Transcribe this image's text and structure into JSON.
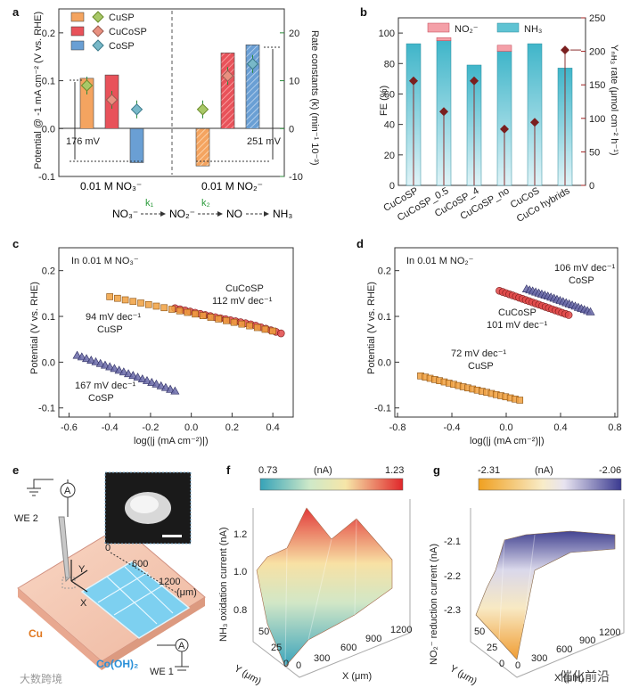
{
  "panels": {
    "a": {
      "label": "a",
      "ylabel_left": "Potential @ -1 mA cm⁻² (V vs. RHE)",
      "ylabel_right": "Rate constants (k) (min⁻¹ 10⁻³)",
      "left_ticks": [
        "0.2",
        "0.1",
        "0.0",
        "-0.1"
      ],
      "right_ticks": [
        "20",
        "10",
        "0",
        "-10"
      ],
      "legend": [
        "CuSP",
        "CuCoSP",
        "CoSP"
      ],
      "group_labels": [
        "0.01 M NO₃⁻",
        "0.01 M NO₂⁻"
      ],
      "annot_left": "176 mV",
      "annot_right": "251 mV",
      "scheme": {
        "s1": "NO₃⁻",
        "s2": "NO₂⁻",
        "s3": "NO",
        "s4": "NH₃",
        "k1": "k₁",
        "k2": "k₂"
      }
    },
    "b": {
      "label": "b",
      "ylabel_left": "FE (%)",
      "ylabel_right": "Yₙʜ₃ rate (μmol cm⁻² h⁻¹)",
      "left_ticks": [
        "100",
        "80",
        "60",
        "40",
        "20",
        "0"
      ],
      "right_ticks": [
        "250",
        "200",
        "150",
        "100",
        "50",
        "0"
      ],
      "legend": [
        "NO₂⁻",
        "NH₃"
      ],
      "categories": [
        "CuCoSP",
        "CuCoSP_0.5",
        "CuCoSP_4",
        "CuCoSP_no",
        "CuCoS",
        "CuCo hybrids"
      ]
    },
    "c": {
      "label": "c",
      "title": "In 0.01 M NO₃⁻",
      "ylabel": "Potential (V vs. RHE)",
      "xlabel": "log(|j (mA cm⁻²)|)",
      "x_ticks": [
        "-0.6",
        "-0.4",
        "-0.2",
        "0.0",
        "0.2",
        "0.4"
      ],
      "y_ticks": [
        "0.2",
        "0.1",
        "0.0",
        "-0.1"
      ],
      "annotations": {
        "cucosp_name": "CuCoSP",
        "cucosp_slope": "112 mV dec⁻¹",
        "cusp_slope": "94 mV dec⁻¹",
        "cusp_name": "CuSP",
        "cosp_slope": "167 mV dec⁻¹",
        "cosp_name": "CoSP"
      }
    },
    "d": {
      "label": "d",
      "title": "In 0.01 M NO₂⁻",
      "ylabel": "Potential (V vs. RHE)",
      "xlabel": "log(|j (mA cm⁻²)|)",
      "x_ticks": [
        "-0.8",
        "-0.4",
        "0.0",
        "0.4",
        "0.8"
      ],
      "y_ticks": [
        "0.2",
        "0.1",
        "0.0",
        "-0.1"
      ],
      "annotations": {
        "cosp_slope": "106 mV dec⁻¹",
        "cosp_name": "CoSP",
        "cucosp_name": "CuCoSP",
        "cucosp_slope": "101 mV dec⁻¹",
        "cusp_slope": "72 mV dec⁻¹",
        "cusp_name": "CuSP"
      }
    },
    "e": {
      "label": "e",
      "we2": "WE 2",
      "we1": "WE 1",
      "ammeter": "A",
      "cu": "Cu",
      "coh": "Co(OH)₂",
      "ticks": [
        "0",
        "600",
        "1200",
        "(μm)"
      ],
      "axis_x": "X",
      "axis_y": "Y"
    },
    "f": {
      "label": "f",
      "cbar_min": "0.73",
      "cbar_unit": "(nA)",
      "cbar_max": "1.23",
      "zlabel": "NH₃ oxidation current (nA)",
      "z_ticks": [
        "1.2",
        "1.0",
        "0.8"
      ],
      "x_ticks": [
        "0",
        "300",
        "600",
        "900",
        "1200"
      ],
      "y_ticks": [
        "50",
        "25",
        "0"
      ],
      "xlabel": "X (μm)",
      "ylabel": "Y (μm)"
    },
    "g": {
      "label": "g",
      "cbar_min": "-2.31",
      "cbar_unit": "(nA)",
      "cbar_max": "-2.06",
      "zlabel": "NO₂⁻ reduction current (nA)",
      "z_ticks": [
        "-2.1",
        "-2.2",
        "-2.3"
      ],
      "x_ticks": [
        "0",
        "300",
        "600",
        "900",
        "1200"
      ],
      "y_ticks": [
        "50",
        "25",
        "0"
      ],
      "xlabel": "X (μm)",
      "ylabel": "Y (μm)"
    }
  },
  "watermark": {
    "left": "大数跨境",
    "right": "催化前沿"
  },
  "colors": {
    "cusp": "#f4a460",
    "cucosp": "#e8525a",
    "cosp": "#6a9fd4",
    "nh3": "#5fc3d3",
    "no2": "#f4a0a8",
    "diamond": "#7a1f1f",
    "tafel_cu": "#f0a040",
    "tafel_cuco": "#e04848",
    "tafel_co": "#6a6aa8"
  },
  "chart_data": [
    {
      "id": "a",
      "type": "bar",
      "categories": [
        "0.01 M NO₃⁻",
        "0.01 M NO₂⁻"
      ],
      "series": [
        {
          "name": "CuSP",
          "values": [
            0.105,
            -0.078
          ]
        },
        {
          "name": "CuCoSP",
          "values": [
            0.112,
            0.158
          ]
        },
        {
          "name": "CoSP",
          "values": [
            -0.071,
            0.175
          ]
        }
      ],
      "rate_constants": [
        {
          "name": "CuSP",
          "values": [
            9,
            4
          ]
        },
        {
          "name": "CuCoSP",
          "values": [
            6,
            11
          ]
        },
        {
          "name": "CoSP",
          "values": [
            4,
            13.5
          ]
        }
      ],
      "ylim": [
        -0.1,
        0.25
      ],
      "ylim_right": [
        -10,
        25
      ]
    },
    {
      "id": "b",
      "type": "bar",
      "categories": [
        "CuCoSP",
        "CuCoSP_0.5",
        "CuCoSP_4",
        "CuCoSP_no",
        "CuCoS",
        "CuCo hybrids"
      ],
      "series": [
        {
          "name": "NH₃",
          "values": [
            93,
            95,
            79,
            88,
            93,
            77
          ]
        },
        {
          "name": "NO₂⁻",
          "values": [
            0,
            2,
            0,
            4,
            0,
            0
          ]
        }
      ],
      "yield_rate": [
        156,
        110,
        156,
        84,
        94,
        202
      ],
      "ylim": [
        0,
        110
      ],
      "ylim_right": [
        0,
        250
      ]
    },
    {
      "id": "c",
      "type": "scatter",
      "series": [
        {
          "name": "CuCoSP",
          "x": [
            -0.08,
            0.1,
            0.3,
            0.44
          ],
          "y": [
            0.118,
            0.1,
            0.082,
            0.063
          ]
        },
        {
          "name": "CuSP",
          "x": [
            -0.4,
            -0.2,
            0.0,
            0.2,
            0.4
          ],
          "y": [
            0.143,
            0.125,
            0.107,
            0.088,
            0.068
          ]
        },
        {
          "name": "CoSP",
          "x": [
            -0.56,
            -0.4,
            -0.25,
            -0.08
          ],
          "y": [
            0.015,
            -0.01,
            -0.035,
            -0.063
          ]
        }
      ],
      "xlim": [
        -0.65,
        0.5
      ],
      "ylim": [
        -0.12,
        0.25
      ]
    },
    {
      "id": "d",
      "type": "scatter",
      "series": [
        {
          "name": "CoSP",
          "x": [
            0.15,
            0.35,
            0.62
          ],
          "y": [
            0.16,
            0.14,
            0.11
          ]
        },
        {
          "name": "CuCoSP",
          "x": [
            -0.05,
            0.2,
            0.46
          ],
          "y": [
            0.156,
            0.13,
            0.103
          ]
        },
        {
          "name": "CuSP",
          "x": [
            -0.63,
            -0.3,
            0.1
          ],
          "y": [
            -0.03,
            -0.055,
            -0.083
          ]
        }
      ],
      "xlim": [
        -0.82,
        0.82
      ],
      "ylim": [
        -0.12,
        0.25
      ]
    }
  ]
}
